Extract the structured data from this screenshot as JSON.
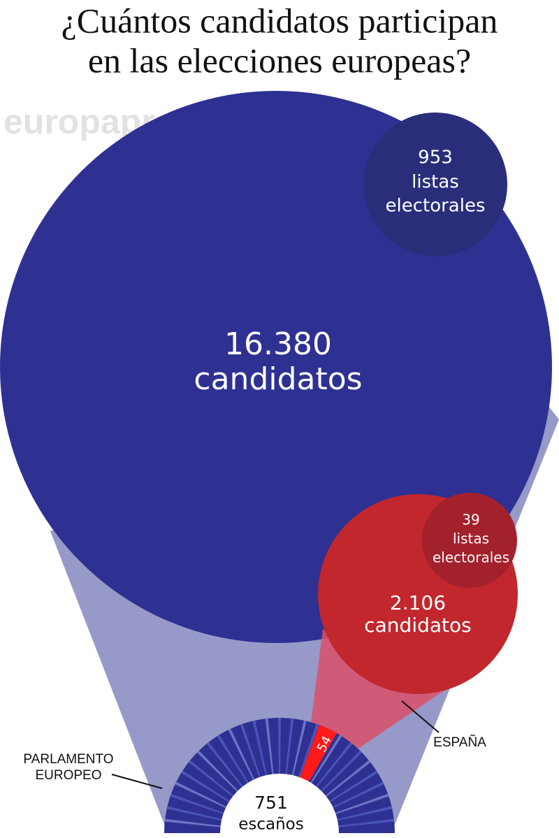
{
  "title": [
    "¿Cuántos candidatos participan",
    "en las elecciones europeas?"
  ],
  "watermark": "europapress.es",
  "europe": {
    "candidates": {
      "number": "16.380",
      "label": "candidatos"
    },
    "lists": {
      "number": "953",
      "label": [
        "listas",
        "electorales"
      ]
    }
  },
  "spain": {
    "candidates": {
      "number": "2.106",
      "label": "candidatos"
    },
    "lists": {
      "number": "39",
      "label": [
        "listas",
        "electorales"
      ]
    },
    "seats": "54",
    "label": "ESPAÑA"
  },
  "parliament": {
    "label": [
      "PARLAMENTO",
      "EUROPEO"
    ],
    "seats": {
      "number": "751",
      "label": "escaños"
    }
  }
}
